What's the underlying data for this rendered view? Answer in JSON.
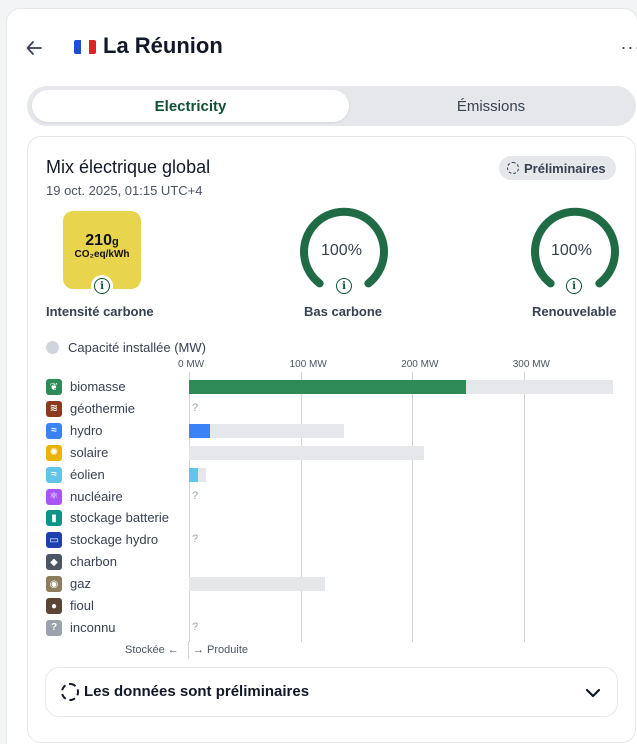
{
  "header": {
    "zone_name": "La Réunion",
    "back_icon": "arrow-left-icon",
    "flag_icon": "flag-france-icon",
    "more_icon": "more-horizontal-icon",
    "more_label": "···"
  },
  "tabs": [
    {
      "label": "Electricity",
      "active": true
    },
    {
      "label": "Émissions",
      "active": false
    }
  ],
  "card": {
    "title": "Mix électrique global",
    "datetime": "19 oct. 2025, 01:15 UTC+4",
    "badge": "Préliminaires"
  },
  "metrics": {
    "carbon_intensity": {
      "value": "210",
      "unit_suffix": "g",
      "unit": "CO₂eq/kWh",
      "label": "Intensité carbone",
      "color": "#e8d44d"
    },
    "low_carbon": {
      "value": "100%",
      "label": "Bas carbone",
      "fraction": 1.0
    },
    "renewable": {
      "value": "100%",
      "label": "Renouvelable",
      "fraction": 1.0
    },
    "info_glyph": "i"
  },
  "chart_toggle": {
    "label": "Capacité installée (MW)",
    "on": false
  },
  "chart_data": {
    "type": "bar",
    "orientation": "horizontal",
    "unit": "MW",
    "xlim": [
      0,
      380
    ],
    "ticks": [
      "0 MW",
      "100 MW",
      "200 MW",
      "300 MW"
    ],
    "tick_values": [
      0,
      100,
      200,
      300
    ],
    "categories": [
      "biomasse",
      "géothermie",
      "hydro",
      "solaire",
      "éolien",
      "nucléaire",
      "stockage batterie",
      "stockage hydro",
      "charbon",
      "gaz",
      "fioul",
      "inconnu"
    ],
    "series": [
      {
        "name": "Produite",
        "values": [
          248,
          null,
          19,
          0,
          8,
          null,
          0,
          null,
          0,
          0,
          0,
          null
        ]
      },
      {
        "name": "Capacité installée",
        "values": [
          380,
          null,
          139,
          211,
          15,
          null,
          0,
          null,
          0,
          122,
          0,
          null
        ]
      }
    ],
    "colors": [
      "#2e8b57",
      "#8b3a1f",
      "#3b82f6",
      "#eab308",
      "#60c5e6",
      "#a855f7",
      "#0d9488",
      "#1e40af",
      "#4b5563",
      "#8b7d5e",
      "#5b4636",
      "#9ca3af"
    ],
    "icons": [
      "leaf-icon",
      "geothermal-icon",
      "water-waves-icon",
      "sun-icon",
      "wind-icon",
      "atom-icon",
      "battery-icon",
      "hydro-storage-icon",
      "coal-icon",
      "gas-icon",
      "oil-drop-icon",
      "question-icon"
    ],
    "unknown_glyph": "?",
    "flow_stored": "Stockée ←",
    "flow_produced": "→ Produite"
  },
  "accordion": {
    "label": "Les données sont préliminaires",
    "expanded": false
  }
}
